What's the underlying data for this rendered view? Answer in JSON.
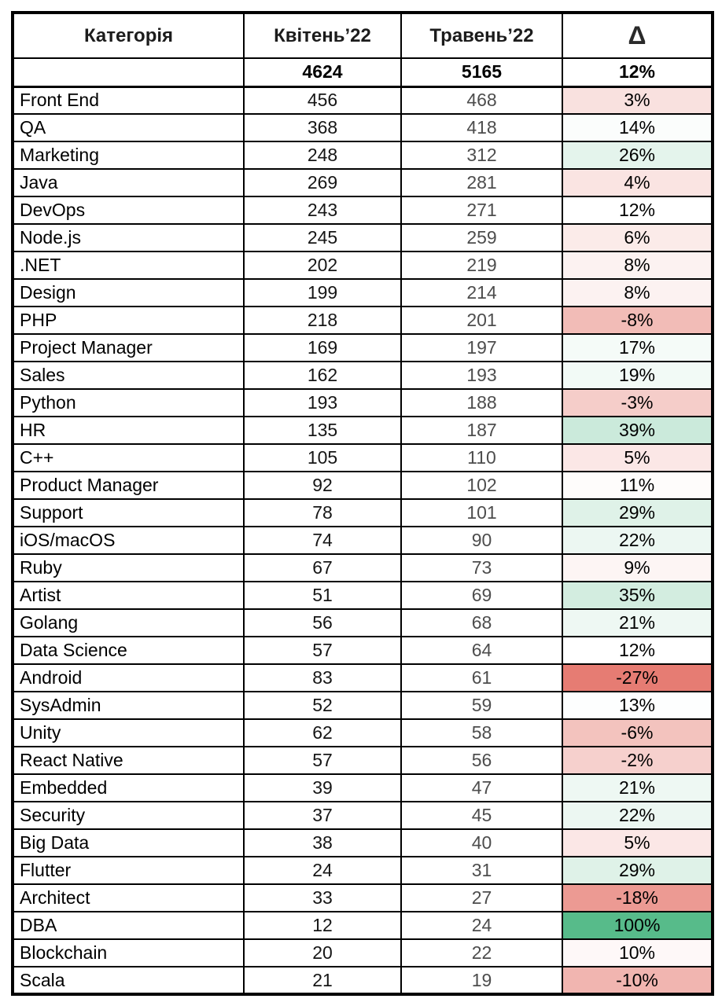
{
  "chart_data": {
    "type": "table",
    "columns": [
      "Категорія",
      "Квітень’22",
      "Травень’22",
      "Δ"
    ],
    "total_row": {
      "april": "4624",
      "may": "5165",
      "delta": "12%"
    },
    "color_scale": {
      "negative_color": "#E67C73",
      "midpoint_color": "#FFFFFF",
      "positive_color": "#57BB8A",
      "min_value": -27,
      "mid_value": 12,
      "max_value": 100
    },
    "rows": [
      {
        "category": "Front End",
        "april": 456,
        "may": 468,
        "delta": 3
      },
      {
        "category": "QA",
        "april": 368,
        "may": 418,
        "delta": 14
      },
      {
        "category": "Marketing",
        "april": 248,
        "may": 312,
        "delta": 26
      },
      {
        "category": "Java",
        "april": 269,
        "may": 281,
        "delta": 4
      },
      {
        "category": "DevOps",
        "april": 243,
        "may": 271,
        "delta": 12
      },
      {
        "category": "Node.js",
        "april": 245,
        "may": 259,
        "delta": 6
      },
      {
        "category": ".NET",
        "april": 202,
        "may": 219,
        "delta": 8
      },
      {
        "category": "Design",
        "april": 199,
        "may": 214,
        "delta": 8
      },
      {
        "category": "PHP",
        "april": 218,
        "may": 201,
        "delta": -8
      },
      {
        "category": "Project Manager",
        "april": 169,
        "may": 197,
        "delta": 17
      },
      {
        "category": "Sales",
        "april": 162,
        "may": 193,
        "delta": 19
      },
      {
        "category": "Python",
        "april": 193,
        "may": 188,
        "delta": -3
      },
      {
        "category": "HR",
        "april": 135,
        "may": 187,
        "delta": 39
      },
      {
        "category": "C++",
        "april": 105,
        "may": 110,
        "delta": 5
      },
      {
        "category": "Product Manager",
        "april": 92,
        "may": 102,
        "delta": 11
      },
      {
        "category": "Support",
        "april": 78,
        "may": 101,
        "delta": 29
      },
      {
        "category": "iOS/macOS",
        "april": 74,
        "may": 90,
        "delta": 22
      },
      {
        "category": "Ruby",
        "april": 67,
        "may": 73,
        "delta": 9
      },
      {
        "category": "Artist",
        "april": 51,
        "may": 69,
        "delta": 35
      },
      {
        "category": "Golang",
        "april": 56,
        "may": 68,
        "delta": 21
      },
      {
        "category": "Data Science",
        "april": 57,
        "may": 64,
        "delta": 12
      },
      {
        "category": "Android",
        "april": 83,
        "may": 61,
        "delta": -27
      },
      {
        "category": "SysAdmin",
        "april": 52,
        "may": 59,
        "delta": 13
      },
      {
        "category": "Unity",
        "april": 62,
        "may": 58,
        "delta": -6
      },
      {
        "category": "React Native",
        "april": 57,
        "may": 56,
        "delta": -2
      },
      {
        "category": "Embedded",
        "april": 39,
        "may": 47,
        "delta": 21
      },
      {
        "category": "Security",
        "april": 37,
        "may": 45,
        "delta": 22
      },
      {
        "category": "Big Data",
        "april": 38,
        "may": 40,
        "delta": 5
      },
      {
        "category": "Flutter",
        "april": 24,
        "may": 31,
        "delta": 29
      },
      {
        "category": "Architect",
        "april": 33,
        "may": 27,
        "delta": -18
      },
      {
        "category": "DBA",
        "april": 12,
        "may": 24,
        "delta": 100
      },
      {
        "category": "Blockchain",
        "april": 20,
        "may": 22,
        "delta": 10
      },
      {
        "category": "Scala",
        "april": 21,
        "may": 19,
        "delta": -10
      }
    ]
  }
}
